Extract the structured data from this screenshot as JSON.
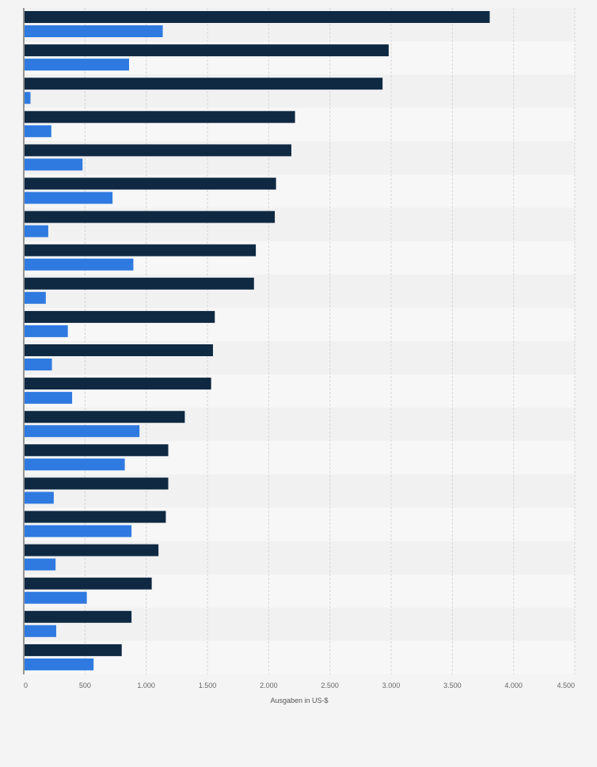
{
  "chart_data": {
    "type": "bar",
    "orientation": "horizontal",
    "xlabel": "Ausgaben in US-$",
    "xlim": [
      0,
      4500
    ],
    "x_ticks": [
      0,
      500,
      1000,
      1500,
      2000,
      2500,
      3000,
      3500,
      4000,
      4500
    ],
    "x_tick_labels": [
      "0",
      "500",
      "1.000",
      "1.500",
      "2.000",
      "2.500",
      "3.000",
      "3.500",
      "4.000",
      "4.500"
    ],
    "grid": true,
    "category_count": 20,
    "series": [
      {
        "color": "#0f2942",
        "values": [
          3805,
          2980,
          2930,
          2215,
          2185,
          2060,
          2050,
          1895,
          1880,
          1560,
          1545,
          1530,
          1315,
          1180,
          1180,
          1160,
          1100,
          1045,
          880,
          800
        ]
      },
      {
        "color": "#2f7ae0",
        "values": [
          1135,
          860,
          55,
          225,
          480,
          725,
          200,
          895,
          180,
          360,
          230,
          395,
          945,
          825,
          245,
          880,
          260,
          515,
          265,
          570
        ]
      }
    ]
  }
}
